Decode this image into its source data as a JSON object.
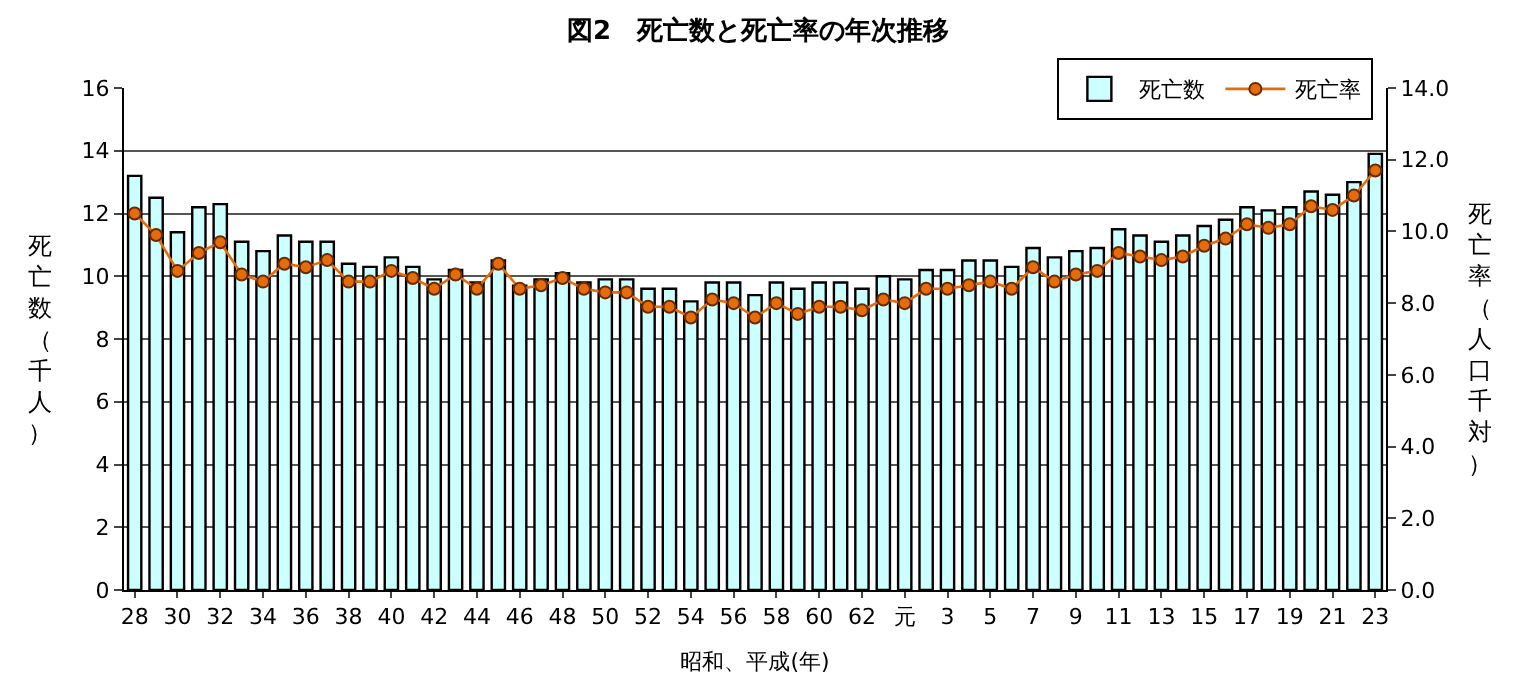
{
  "chart_data": {
    "type": "bar",
    "title": "図2　死亡数と死亡率の年次推移",
    "xlabel": "昭和、平成(年)",
    "ylabel": "死亡数（千人）",
    "y2label": "死亡率（人口千対）",
    "categories": [
      "28",
      null,
      "30",
      null,
      "32",
      null,
      "34",
      null,
      "36",
      null,
      "38",
      null,
      "40",
      null,
      "42",
      null,
      "44",
      null,
      "46",
      null,
      "48",
      null,
      "50",
      null,
      "52",
      null,
      "54",
      null,
      "56",
      null,
      "58",
      null,
      "60",
      null,
      "62",
      null,
      "元",
      null,
      "3",
      null,
      "5",
      null,
      "7",
      null,
      "9",
      null,
      "11",
      null,
      "13",
      null,
      "15",
      null,
      "17",
      null,
      "19",
      null,
      "21",
      null,
      "23"
    ],
    "series": [
      {
        "name": "死亡数",
        "color": "#ccffff",
        "values": [
          13.2,
          12.5,
          11.4,
          12.2,
          12.3,
          11.1,
          10.8,
          11.3,
          11.1,
          11.1,
          10.4,
          10.3,
          10.6,
          10.3,
          9.9,
          10.2,
          9.8,
          10.5,
          9.7,
          9.9,
          10.1,
          9.8,
          9.9,
          9.9,
          9.6,
          9.6,
          9.2,
          9.8,
          9.8,
          9.4,
          9.8,
          9.6,
          9.8,
          9.8,
          9.6,
          10.0,
          9.9,
          10.2,
          10.2,
          10.5,
          10.5,
          10.3,
          10.9,
          10.6,
          10.8,
          10.9,
          11.5,
          11.3,
          11.1,
          11.3,
          11.6,
          11.8,
          12.2,
          12.1,
          12.2,
          12.7,
          12.6,
          13.0,
          13.9
        ]
      },
      {
        "name": "死亡率",
        "type": "line",
        "axis": "y2",
        "color": "#e46c0a",
        "marker": "circle",
        "line_style": "solid",
        "values": [
          10.5,
          9.9,
          8.9,
          9.4,
          9.7,
          8.8,
          8.6,
          9.1,
          9.0,
          9.2,
          8.6,
          8.6,
          8.9,
          8.7,
          8.4,
          8.8,
          8.4,
          9.1,
          8.4,
          8.5,
          8.7,
          8.4,
          8.3,
          8.3,
          7.9,
          7.9,
          7.6,
          8.1,
          8.0,
          7.6,
          8.0,
          7.7,
          7.9,
          7.9,
          7.8,
          8.1,
          8.0,
          8.4,
          8.4,
          8.5,
          8.6,
          8.4,
          9.0,
          8.6,
          8.8,
          8.9,
          9.4,
          9.3,
          9.2,
          9.3,
          9.6,
          9.8,
          10.2,
          10.1,
          10.2,
          10.7,
          10.6,
          11.0,
          11.7
        ]
      }
    ],
    "ylim": [
      0,
      16
    ],
    "yticks": [
      0,
      2,
      4,
      6,
      8,
      10,
      12,
      14,
      16
    ],
    "y2lim": [
      0,
      14
    ],
    "y2ticks": [
      {
        "value": 0,
        "label": "0.0"
      },
      {
        "value": 2,
        "label": "2.0"
      },
      {
        "value": 4,
        "label": "4.0"
      },
      {
        "value": 6,
        "label": "6.0"
      },
      {
        "value": 8,
        "label": "8.0"
      },
      {
        "value": 10,
        "label": "10.0"
      },
      {
        "value": 12,
        "label": "12.0"
      },
      {
        "value": 14,
        "label": "14.0"
      }
    ],
    "grid": "y",
    "legend": "top right"
  }
}
